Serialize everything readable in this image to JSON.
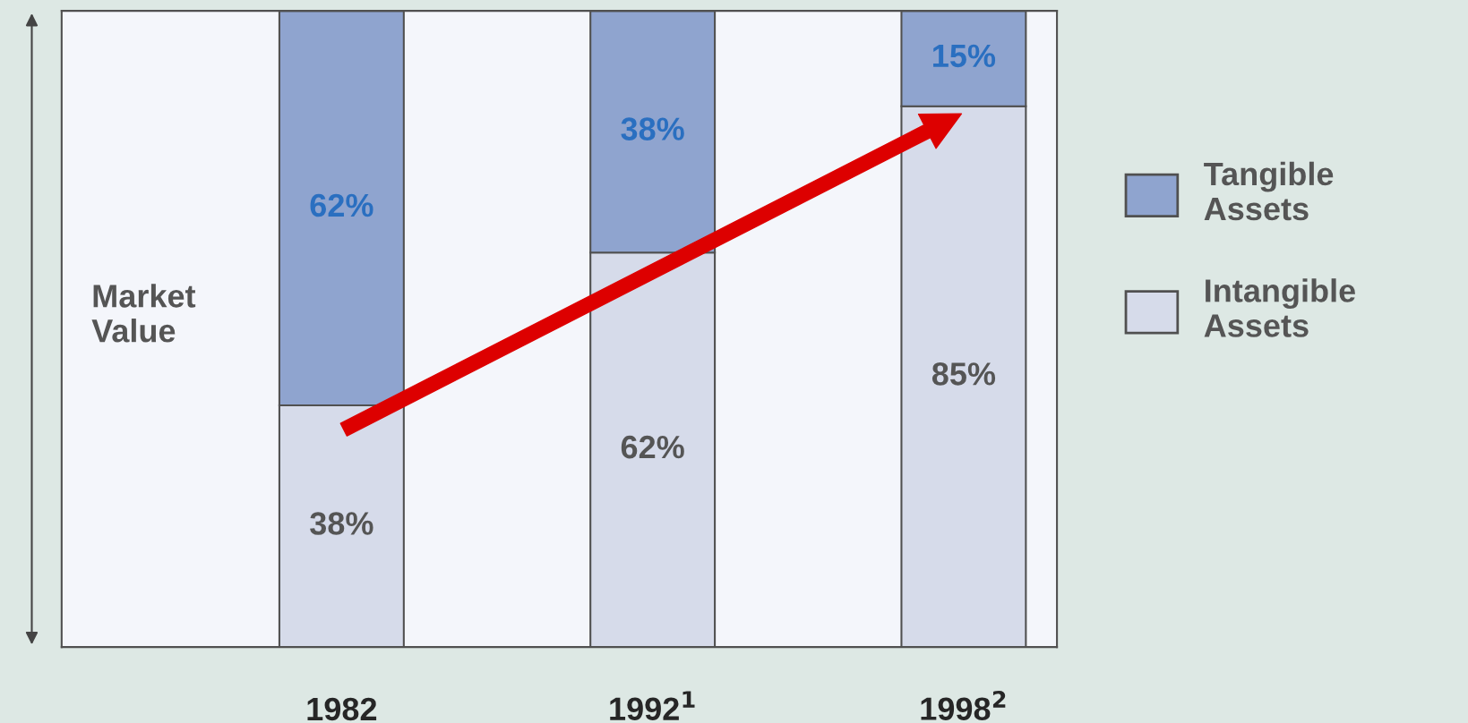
{
  "chart_data": {
    "type": "bar",
    "stacked": true,
    "categories": [
      "1982",
      "1992$^{1}$",
      "1998$^{2}$"
    ],
    "series": [
      {
        "name": "Intangible\nAssets",
        "color": "#d6dbea",
        "values": [
          38,
          62,
          85
        ],
        "value_labels": [
          "38%",
          "62%",
          "85%"
        ]
      },
      {
        "name": "Tangible\nAssets",
        "color": "#8fa4cf",
        "values": [
          62,
          38,
          15
        ],
        "value_labels": [
          "62%",
          "38%",
          "15%"
        ]
      }
    ],
    "annotations": [
      "Market\nValue"
    ],
    "legend": "right"
  }
}
